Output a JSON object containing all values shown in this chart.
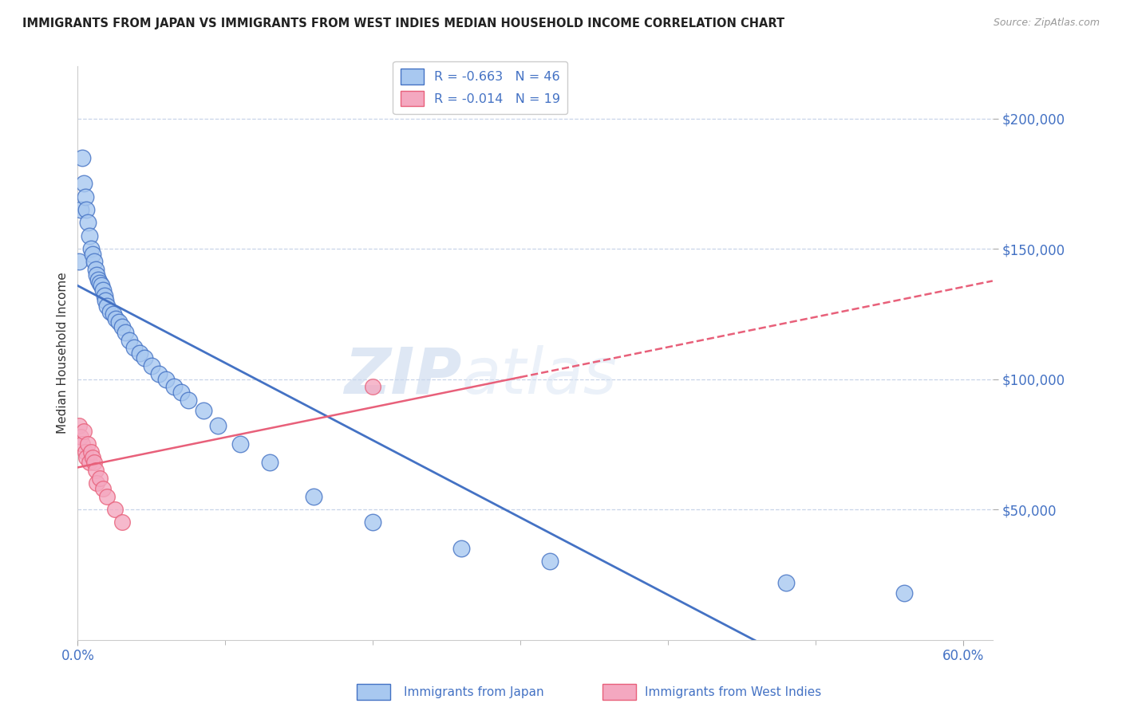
{
  "title": "IMMIGRANTS FROM JAPAN VS IMMIGRANTS FROM WEST INDIES MEDIAN HOUSEHOLD INCOME CORRELATION CHART",
  "source": "Source: ZipAtlas.com",
  "ylabel": "Median Household Income",
  "watermark": "ZIPatlas",
  "japan_R": -0.663,
  "japan_N": 46,
  "wi_R": -0.014,
  "wi_N": 19,
  "japan_color": "#a8c8f0",
  "japan_line_color": "#4472c4",
  "wi_color": "#f4a8c0",
  "wi_line_color": "#e8607a",
  "label_color": "#4472c4",
  "japan_x": [
    0.001,
    0.002,
    0.003,
    0.004,
    0.005,
    0.006,
    0.007,
    0.008,
    0.009,
    0.01,
    0.011,
    0.012,
    0.013,
    0.014,
    0.015,
    0.016,
    0.017,
    0.018,
    0.019,
    0.02,
    0.022,
    0.024,
    0.026,
    0.028,
    0.03,
    0.032,
    0.035,
    0.038,
    0.042,
    0.045,
    0.05,
    0.055,
    0.06,
    0.065,
    0.07,
    0.075,
    0.085,
    0.095,
    0.11,
    0.13,
    0.16,
    0.2,
    0.26,
    0.32,
    0.48,
    0.56
  ],
  "japan_y": [
    145000,
    165000,
    185000,
    175000,
    170000,
    165000,
    160000,
    155000,
    150000,
    148000,
    145000,
    142000,
    140000,
    138000,
    137000,
    136000,
    134000,
    132000,
    130000,
    128000,
    126000,
    125000,
    123000,
    122000,
    120000,
    118000,
    115000,
    112000,
    110000,
    108000,
    105000,
    102000,
    100000,
    97000,
    95000,
    92000,
    88000,
    82000,
    75000,
    68000,
    55000,
    45000,
    35000,
    30000,
    22000,
    18000
  ],
  "wi_x": [
    0.001,
    0.002,
    0.003,
    0.004,
    0.005,
    0.006,
    0.007,
    0.008,
    0.009,
    0.01,
    0.011,
    0.012,
    0.013,
    0.015,
    0.017,
    0.02,
    0.025,
    0.03,
    0.2
  ],
  "wi_y": [
    82000,
    78000,
    75000,
    80000,
    72000,
    70000,
    75000,
    68000,
    72000,
    70000,
    68000,
    65000,
    60000,
    62000,
    58000,
    55000,
    50000,
    45000,
    97000
  ],
  "ylim_min": 0,
  "ylim_max": 220000,
  "xlim_min": 0.0,
  "xlim_max": 0.62,
  "ytick_positions": [
    50000,
    100000,
    150000,
    200000
  ],
  "ytick_labels": [
    "$50,000",
    "$100,000",
    "$150,000",
    "$200,000"
  ],
  "bg_color": "#ffffff",
  "grid_color": "#c8d4e8"
}
